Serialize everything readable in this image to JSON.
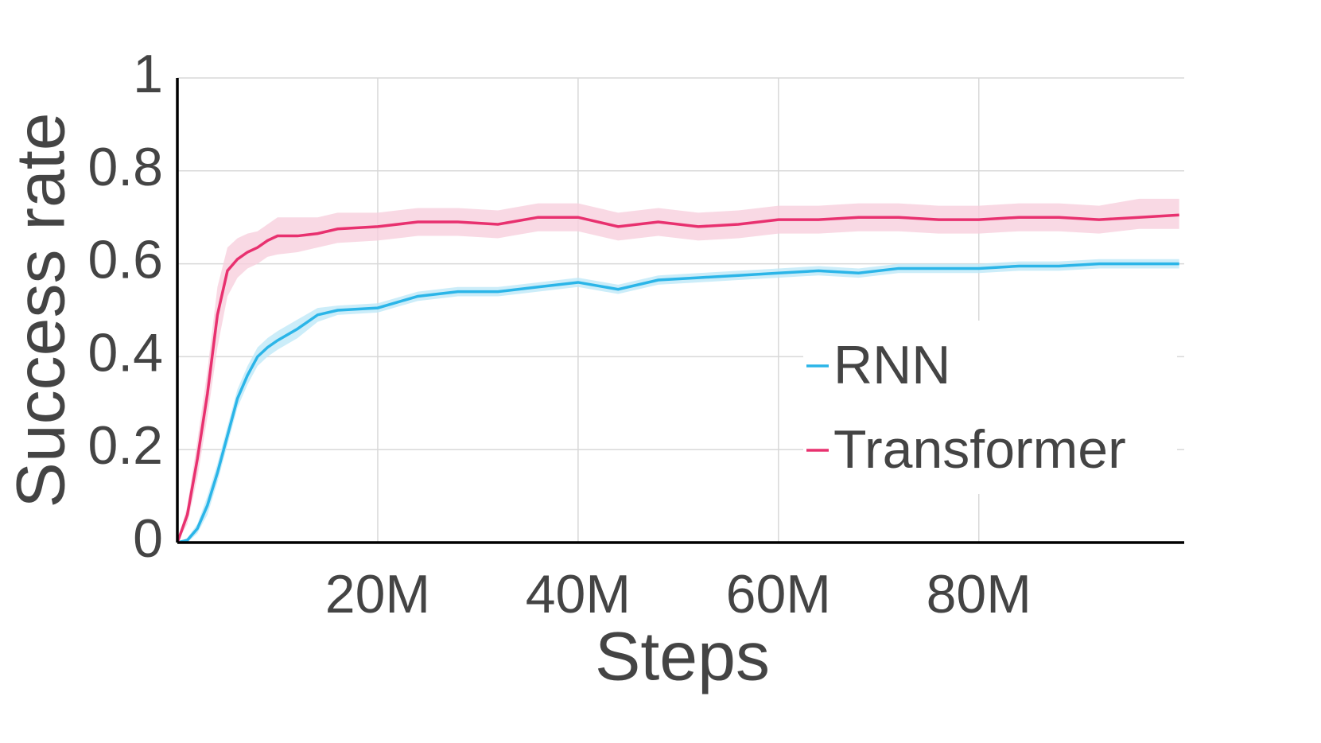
{
  "chart_data": {
    "type": "line",
    "xlabel": "Steps",
    "ylabel": "Success rate",
    "x": [
      0,
      1000000,
      2000000,
      3000000,
      4000000,
      5000000,
      6000000,
      7000000,
      8000000,
      9000000,
      10000000,
      12000000,
      14000000,
      16000000,
      20000000,
      24000000,
      28000000,
      32000000,
      36000000,
      40000000,
      44000000,
      48000000,
      52000000,
      56000000,
      60000000,
      64000000,
      68000000,
      72000000,
      76000000,
      80000000,
      84000000,
      88000000,
      92000000,
      96000000,
      100000000
    ],
    "series": [
      {
        "name": "RNN",
        "color": "#2bb5e8",
        "band_color": "#bfe8f7",
        "values": [
          0,
          0.005,
          0.03,
          0.08,
          0.15,
          0.23,
          0.31,
          0.36,
          0.4,
          0.42,
          0.435,
          0.46,
          0.49,
          0.5,
          0.505,
          0.53,
          0.54,
          0.54,
          0.55,
          0.56,
          0.545,
          0.565,
          0.57,
          0.575,
          0.58,
          0.585,
          0.58,
          0.59,
          0.59,
          0.59,
          0.595,
          0.595,
          0.6,
          0.6,
          0.6
        ],
        "lower": [
          0,
          0,
          0.02,
          0.06,
          0.13,
          0.21,
          0.29,
          0.34,
          0.38,
          0.4,
          0.415,
          0.44,
          0.475,
          0.49,
          0.495,
          0.52,
          0.53,
          0.53,
          0.54,
          0.55,
          0.535,
          0.555,
          0.56,
          0.565,
          0.57,
          0.575,
          0.57,
          0.58,
          0.58,
          0.58,
          0.585,
          0.585,
          0.59,
          0.59,
          0.59
        ],
        "upper": [
          0,
          0.01,
          0.04,
          0.1,
          0.17,
          0.25,
          0.33,
          0.38,
          0.42,
          0.44,
          0.455,
          0.48,
          0.505,
          0.51,
          0.515,
          0.54,
          0.55,
          0.55,
          0.56,
          0.57,
          0.555,
          0.575,
          0.58,
          0.585,
          0.59,
          0.595,
          0.59,
          0.6,
          0.6,
          0.6,
          0.605,
          0.605,
          0.61,
          0.61,
          0.61
        ]
      },
      {
        "name": "Transformer",
        "color": "#e8316f",
        "band_color": "#f8cfdd",
        "values": [
          0,
          0.06,
          0.18,
          0.32,
          0.49,
          0.585,
          0.61,
          0.625,
          0.635,
          0.65,
          0.66,
          0.66,
          0.665,
          0.675,
          0.68,
          0.69,
          0.69,
          0.685,
          0.7,
          0.7,
          0.68,
          0.69,
          0.68,
          0.685,
          0.695,
          0.695,
          0.7,
          0.7,
          0.695,
          0.695,
          0.7,
          0.7,
          0.695,
          0.7,
          0.705
        ],
        "lower": [
          0,
          0.04,
          0.14,
          0.27,
          0.42,
          0.53,
          0.57,
          0.59,
          0.6,
          0.615,
          0.62,
          0.625,
          0.635,
          0.645,
          0.65,
          0.66,
          0.66,
          0.655,
          0.67,
          0.67,
          0.65,
          0.66,
          0.65,
          0.655,
          0.665,
          0.665,
          0.67,
          0.67,
          0.665,
          0.665,
          0.67,
          0.67,
          0.665,
          0.675,
          0.675
        ],
        "upper": [
          0,
          0.08,
          0.22,
          0.37,
          0.55,
          0.635,
          0.655,
          0.665,
          0.67,
          0.685,
          0.7,
          0.7,
          0.7,
          0.71,
          0.71,
          0.72,
          0.72,
          0.715,
          0.73,
          0.73,
          0.71,
          0.72,
          0.71,
          0.715,
          0.725,
          0.725,
          0.73,
          0.73,
          0.725,
          0.725,
          0.73,
          0.73,
          0.725,
          0.74,
          0.74
        ]
      }
    ],
    "xlim": [
      0,
      100500000
    ],
    "xticks": [
      {
        "value": 20000000,
        "label": "20M"
      },
      {
        "value": 40000000,
        "label": "40M"
      },
      {
        "value": 60000000,
        "label": "60M"
      },
      {
        "value": 80000000,
        "label": "80M"
      }
    ],
    "ylim": [
      0,
      1
    ],
    "yticks": [
      0,
      0.2,
      0.4,
      0.6,
      0.8,
      1
    ],
    "grid": true,
    "legend": "center right"
  }
}
